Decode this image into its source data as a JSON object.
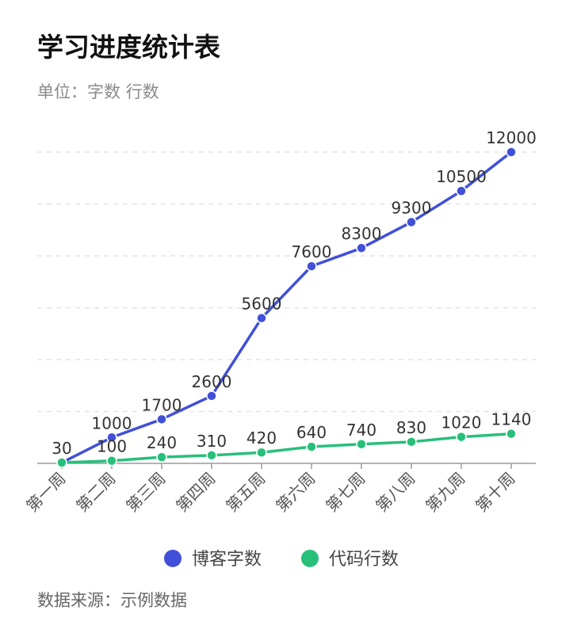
{
  "title": "学习进度统计表",
  "subtitle": "单位：字数 行数",
  "source": "数据来源：示例数据",
  "chart_data": {
    "type": "line",
    "categories": [
      "第一周",
      "第二周",
      "第三周",
      "第四周",
      "第五周",
      "第六周",
      "第七周",
      "第八周",
      "第九周",
      "第十周"
    ],
    "series": [
      {
        "name": "博客字数",
        "color": "#4050d8",
        "values": [
          30,
          1000,
          1700,
          2600,
          5600,
          7600,
          8300,
          9300,
          10500,
          12000
        ]
      },
      {
        "name": "代码行数",
        "color": "#28bf7b",
        "values": [
          30,
          100,
          240,
          310,
          420,
          640,
          740,
          830,
          1020,
          1140
        ]
      }
    ],
    "ylim": [
      0,
      12000
    ],
    "grid": true,
    "legend": "bottom-center",
    "data_labels": [
      [
        "30",
        "1000",
        "1700",
        "2600",
        "5600",
        "7600",
        "8300",
        "9300",
        "10500",
        "12000"
      ],
      [
        "",
        "100",
        "240",
        "310",
        "420",
        "640",
        "740",
        "830",
        "1020",
        "1140"
      ]
    ]
  }
}
